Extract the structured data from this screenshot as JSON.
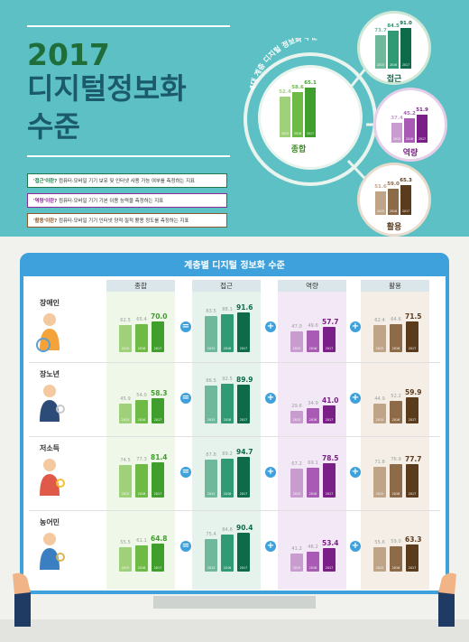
{
  "header": {
    "year": "2017",
    "line2": "디지털정보화",
    "line3": "수준"
  },
  "definitions": [
    {
      "term": "'접근'이란?",
      "text": " 컴퓨터·모바일 기기 보유 및 인터넷 사용 가능 여부를 측정하는 지표",
      "color": "#1e7a4b"
    },
    {
      "term": "'역량'이란?",
      "text": " 컴퓨터·모바일 기기 기본 이용 능력을 측정하는 지표",
      "color": "#8a2a92"
    },
    {
      "term": "'활용'이란?",
      "text": " 컴퓨터·모바일 기기 인터넷 양적·질적 활용 정도를 측정하는 지표",
      "color": "#8a5a2a"
    }
  ],
  "circles": {
    "arc_label": "4대 계층 디지털 정보화 수준",
    "main": {
      "label": "종합",
      "values": [
        "52.4",
        "58.6",
        "65.1"
      ],
      "nums": [
        52.4,
        58.6,
        65.1
      ]
    },
    "access": {
      "label": "접근",
      "values": [
        "73.7",
        "84.5",
        "91.0"
      ],
      "nums": [
        73.7,
        84.5,
        91.0
      ]
    },
    "capability": {
      "label": "역량",
      "values": [
        "37.4",
        "45.2",
        "51.9"
      ],
      "nums": [
        37.4,
        45.2,
        51.9
      ]
    },
    "usage": {
      "label": "활용",
      "values": [
        "51.6",
        "59.0",
        "65.3"
      ],
      "nums": [
        51.6,
        59.0,
        65.3
      ]
    }
  },
  "years": [
    "2015",
    "2016",
    "2017"
  ],
  "board": {
    "title": "계층별 디지털 정보화 수준",
    "columns": [
      "종합",
      "접근",
      "역량",
      "활용"
    ],
    "operators": [
      "=",
      "+",
      "+"
    ],
    "groups": [
      {
        "name": "장애인",
        "overall": [
          "62.5",
          "65.4",
          "70.0"
        ],
        "overall_n": [
          62.5,
          65.4,
          70.0
        ],
        "access": [
          "83.5",
          "88.1",
          "91.6"
        ],
        "access_n": [
          83.5,
          88.1,
          91.6
        ],
        "capability": [
          "47.0",
          "49.6",
          "57.7"
        ],
        "capability_n": [
          47.0,
          49.6,
          57.7
        ],
        "usage": [
          "62.4",
          "64.6",
          "71.5"
        ],
        "usage_n": [
          62.4,
          64.6,
          71.5
        ]
      },
      {
        "name": "장노년",
        "overall": [
          "45.9",
          "54.0",
          "58.3"
        ],
        "overall_n": [
          45.9,
          54.0,
          58.3
        ],
        "access": [
          "86.5",
          "92.5",
          "89.9"
        ],
        "access_n": [
          86.5,
          92.5,
          89.9
        ],
        "capability": [
          "29.6",
          "34.9",
          "41.0"
        ],
        "capability_n": [
          29.6,
          34.9,
          41.0
        ],
        "usage": [
          "44.9",
          "52.2",
          "59.9"
        ],
        "usage_n": [
          44.9,
          52.2,
          59.9
        ]
      },
      {
        "name": "저소득",
        "overall": [
          "74.5",
          "77.3",
          "81.4"
        ],
        "overall_n": [
          74.5,
          77.3,
          81.4
        ],
        "access": [
          "87.8",
          "89.2",
          "94.7"
        ],
        "access_n": [
          87.8,
          89.2,
          94.7
        ],
        "capability": [
          "67.2",
          "69.1",
          "78.5"
        ],
        "capability_n": [
          67.2,
          69.1,
          78.5
        ],
        "usage": [
          "71.8",
          "76.9",
          "77.7"
        ],
        "usage_n": [
          71.8,
          76.9,
          77.7
        ]
      },
      {
        "name": "농어민",
        "overall": [
          "55.5",
          "61.1",
          "64.8"
        ],
        "overall_n": [
          55.5,
          61.1,
          64.8
        ],
        "access": [
          "75.4",
          "84.8",
          "90.4"
        ],
        "access_n": [
          75.4,
          84.8,
          90.4
        ],
        "capability": [
          "41.2",
          "46.2",
          "53.4"
        ],
        "capability_n": [
          41.2,
          46.2,
          53.4
        ],
        "usage": [
          "55.6",
          "59.0",
          "63.3"
        ],
        "usage_n": [
          55.6,
          59.0,
          63.3
        ]
      }
    ]
  },
  "colors": {
    "overall": [
      "#9fd07a",
      "#6dbb45",
      "#3f9e2c"
    ],
    "access": [
      "#6fb89c",
      "#2f9a74",
      "#0d6b4a"
    ],
    "capability": [
      "#c99cd0",
      "#a85ab5",
      "#7a1f87"
    ],
    "usage": [
      "#bfa487",
      "#8e6b48",
      "#5a3b1c"
    ]
  }
}
